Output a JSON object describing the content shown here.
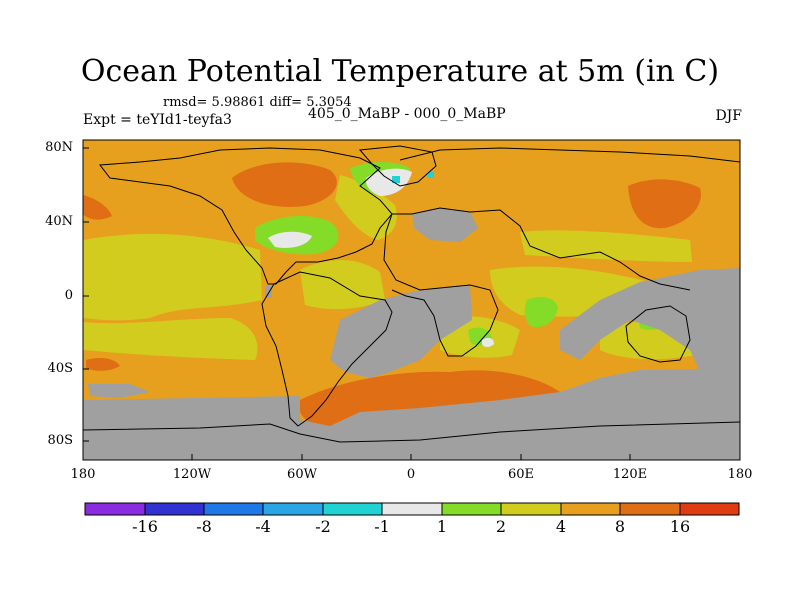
{
  "plot": {
    "title": "Ocean Potential Temperature at 5m (in C)",
    "stats": "rmsd= 5.98861  diff= 5.3054",
    "experiment": "Expt = teYId1-teyfa3",
    "period": "405_0_MaBP - 000_0_MaBP",
    "season": "DJF"
  },
  "axes": {
    "lat_ticks": [
      "80N",
      "40N",
      "0",
      "40S",
      "80S"
    ],
    "lon_ticks": [
      "180",
      "120W",
      "60W",
      "0",
      "60E",
      "120E",
      "180"
    ]
  },
  "colorbar": {
    "labels": [
      "-16",
      "-8",
      "-4",
      "-2",
      "-1",
      "1",
      "2",
      "4",
      "8",
      "16"
    ],
    "colors": [
      "#8a2be2",
      "#3232d2",
      "#1e78e6",
      "#2aa6e6",
      "#20d2d2",
      "#e8e8e8",
      "#84dc28",
      "#d2cc1e",
      "#e6a01e",
      "#e06e14",
      "#e03c14"
    ]
  },
  "map_colors": {
    "land": "#a0a0a0",
    "background": "#e6a01e",
    "coast": "#000000"
  }
}
